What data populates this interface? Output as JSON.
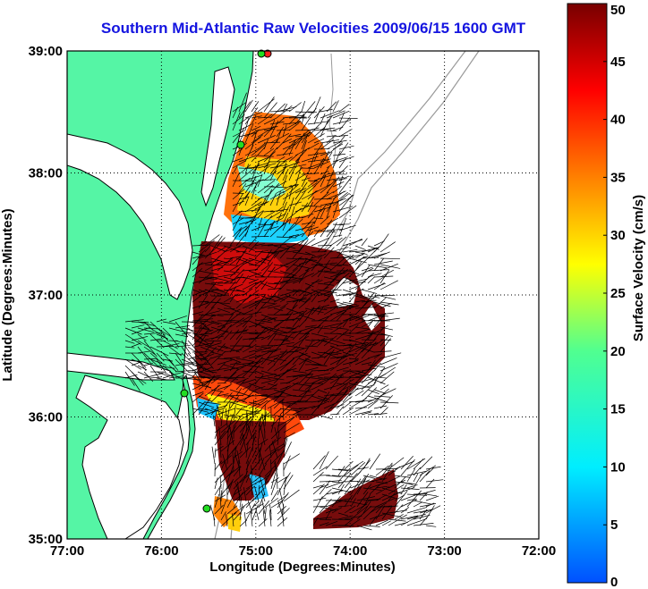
{
  "title": "Southern Mid-Atlantic Raw Velocities 2009/06/15 1600 GMT",
  "map": {
    "xlabel": "Longitude (Degrees:Minutes)",
    "ylabel": "Latitude (Degrees:Minutes)",
    "lon_range": [
      -77,
      -72
    ],
    "lat_range": [
      35,
      39
    ],
    "lon_ticks": [
      {
        "value": -77,
        "label": "77:00"
      },
      {
        "value": -76,
        "label": "76:00"
      },
      {
        "value": -75,
        "label": "75:00"
      },
      {
        "value": -74,
        "label": "74:00"
      },
      {
        "value": -73,
        "label": "73:00"
      },
      {
        "value": -72,
        "label": "72:00"
      }
    ],
    "lat_ticks": [
      {
        "value": 39,
        "label": "39:00"
      },
      {
        "value": 38,
        "label": "38:00"
      },
      {
        "value": 37,
        "label": "37:00"
      },
      {
        "value": 36,
        "label": "36:00"
      },
      {
        "value": 35,
        "label": "35:00"
      }
    ],
    "grid": "dotted",
    "land_color": "#55f5a5",
    "coast_color": "#000000",
    "bathymetry_color": "#999999",
    "station_color": "#22dd22",
    "station_marker": "circle"
  },
  "colorbar": {
    "label": "Surface Velocity (cm/s)",
    "min": 0,
    "max": 50,
    "ticks": [
      "0",
      "5",
      "10",
      "15",
      "20",
      "25",
      "30",
      "35",
      "40",
      "45",
      "50"
    ],
    "colormap": "jet"
  }
}
